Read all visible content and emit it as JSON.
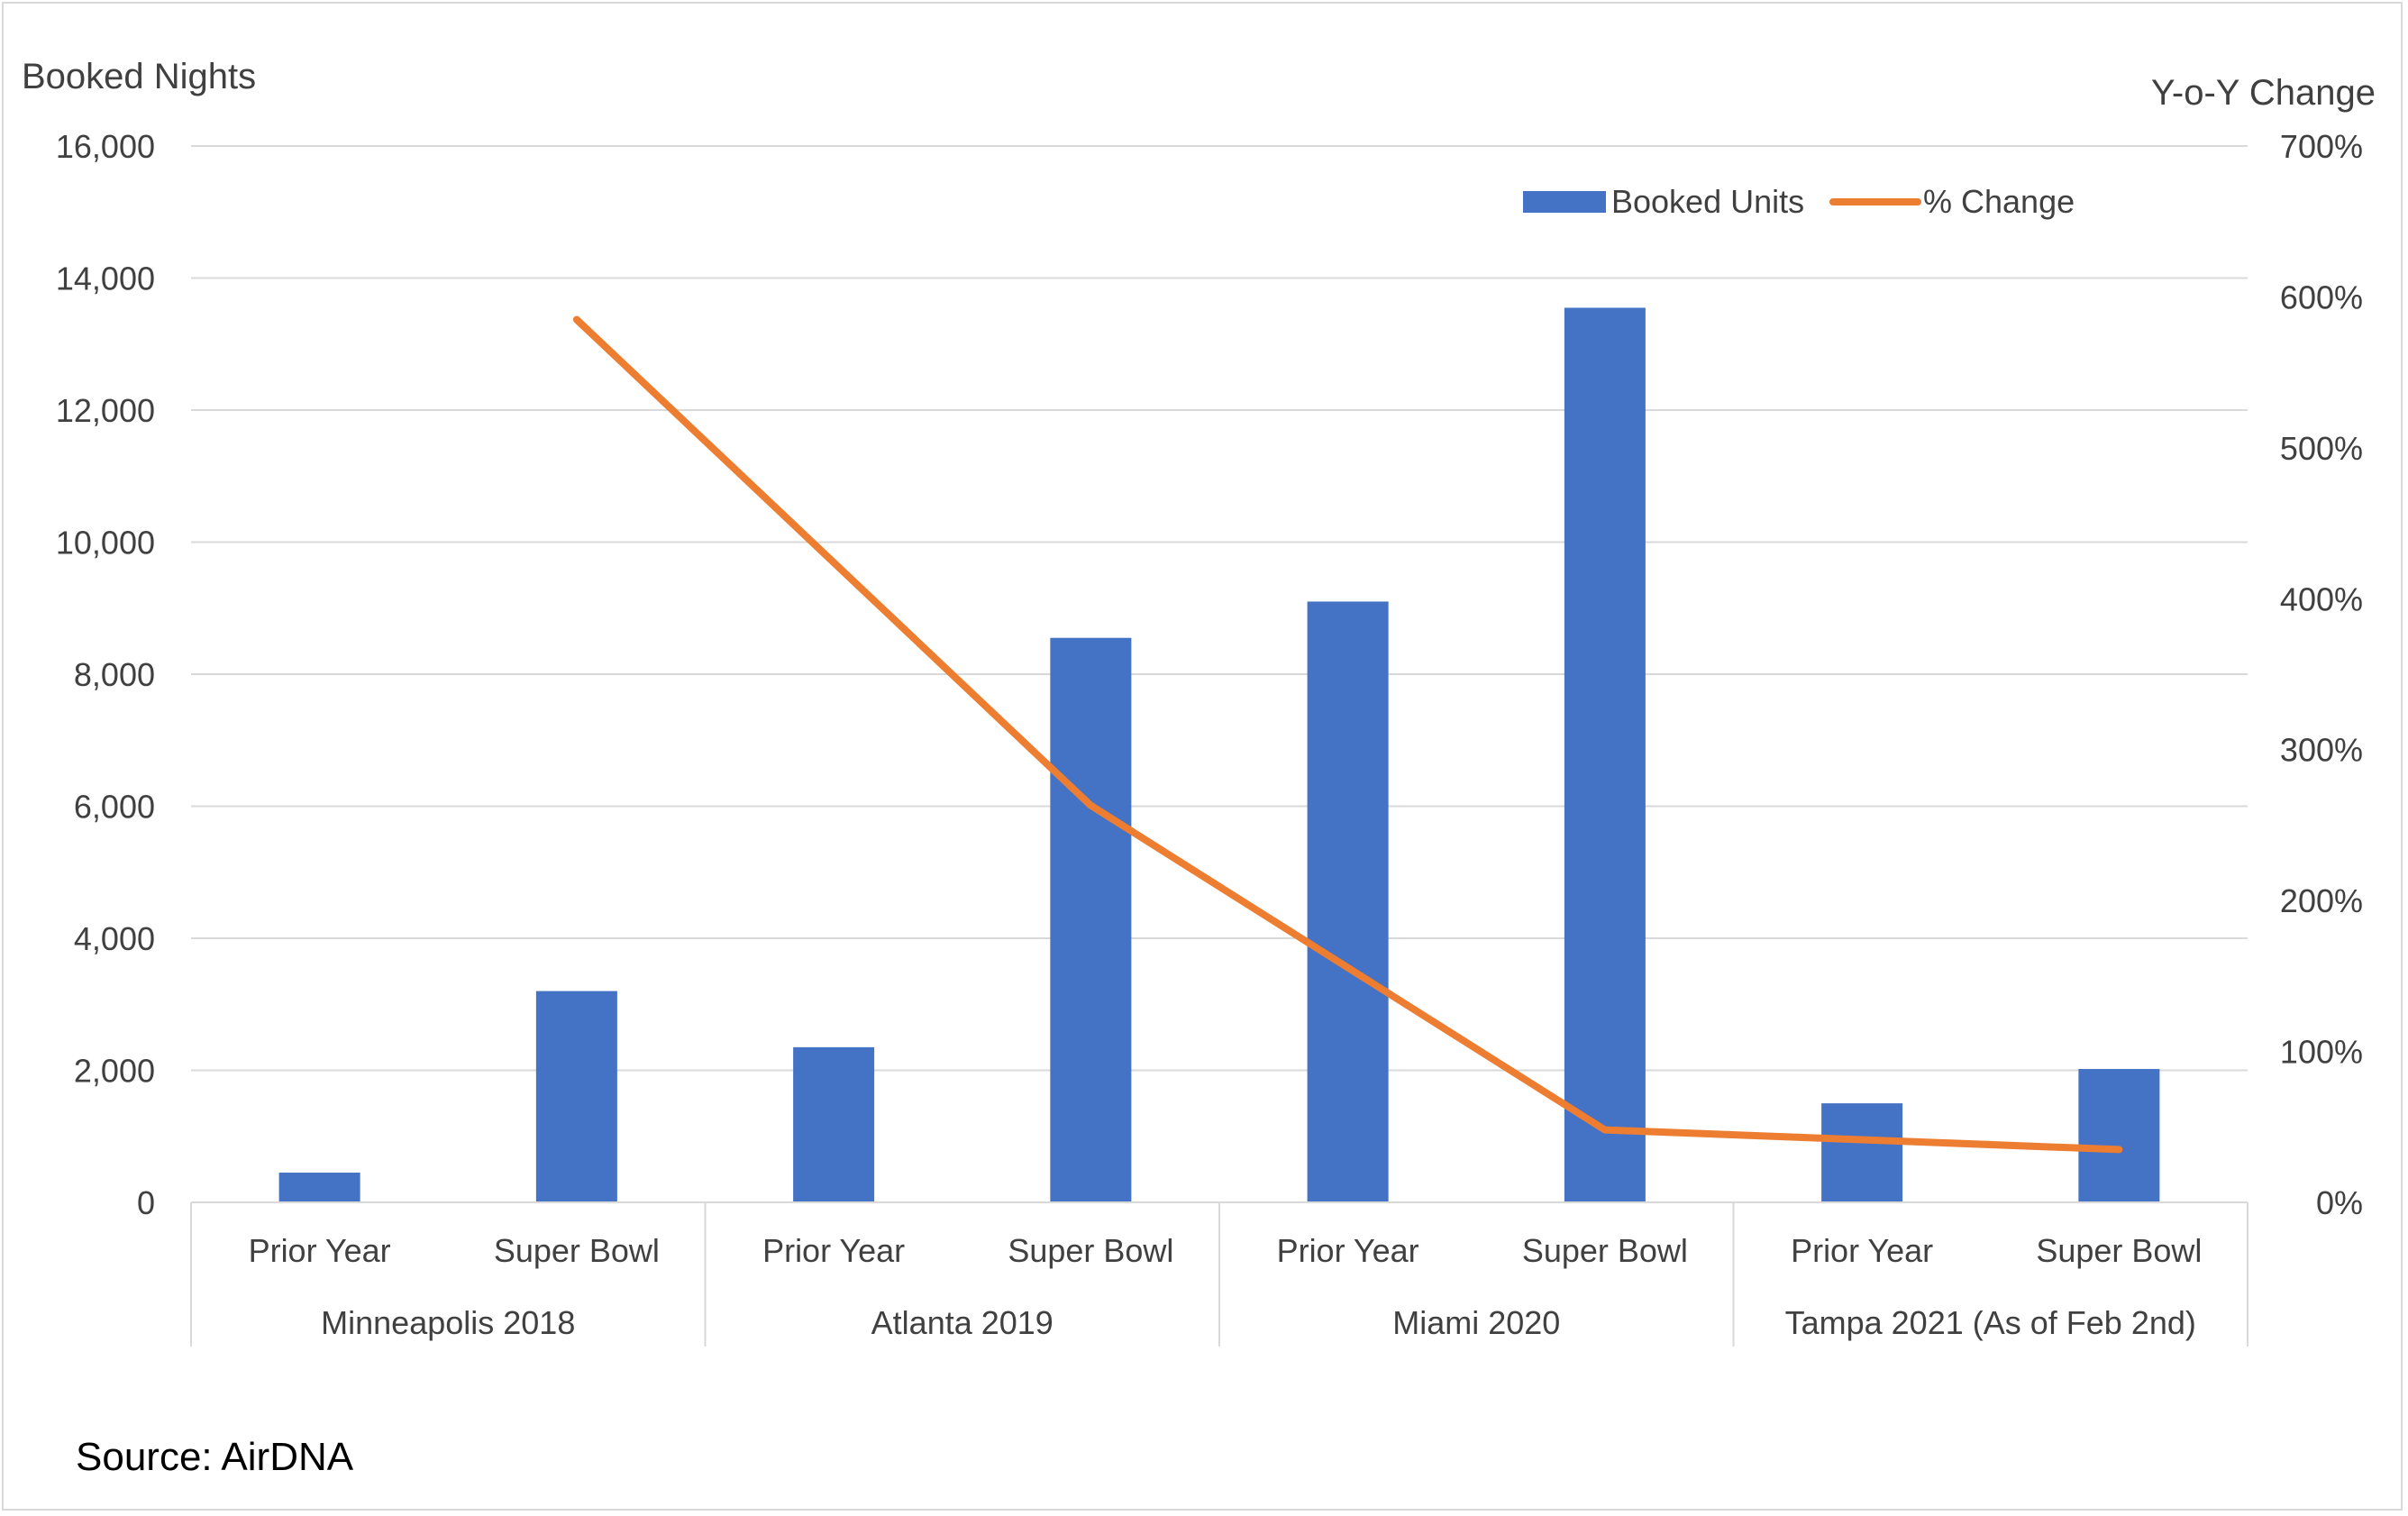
{
  "chart_data": {
    "type": "bar",
    "title": "",
    "ylabel_left": "Booked Nights",
    "ylabel_right": "Y-o-Y Change",
    "left_axis": {
      "min": 0,
      "max": 16000,
      "step": 2000,
      "ticks": [
        "0",
        "2,000",
        "4,000",
        "6,000",
        "8,000",
        "10,000",
        "12,000",
        "14,000",
        "16,000"
      ]
    },
    "right_axis": {
      "min": 0,
      "max": 700,
      "step": 100,
      "ticks": [
        "0%",
        "100%",
        "200%",
        "300%",
        "400%",
        "500%",
        "600%",
        "700%"
      ]
    },
    "categories": [
      "Prior Year",
      "Super Bowl",
      "Prior Year",
      "Super Bowl",
      "Prior Year",
      "Super Bowl",
      "Prior Year",
      "Super Bowl"
    ],
    "groups": [
      "Minneapolis 2018",
      "Atlanta 2019",
      "Miami 2020",
      "Tampa 2021 (As of Feb 2nd)"
    ],
    "series": [
      {
        "name": "Booked Units",
        "type": "bar",
        "axis": "left",
        "color": "#4472c4",
        "values": [
          450,
          3200,
          2350,
          8550,
          9100,
          13550,
          1500,
          2020
        ]
      },
      {
        "name": "% Change",
        "type": "line",
        "axis": "right",
        "color": "#ed7d31",
        "values": [
          null,
          585,
          null,
          263,
          null,
          48,
          null,
          35
        ]
      }
    ],
    "grid": true,
    "legend": "top-right"
  },
  "source": "Source: AirDNA"
}
